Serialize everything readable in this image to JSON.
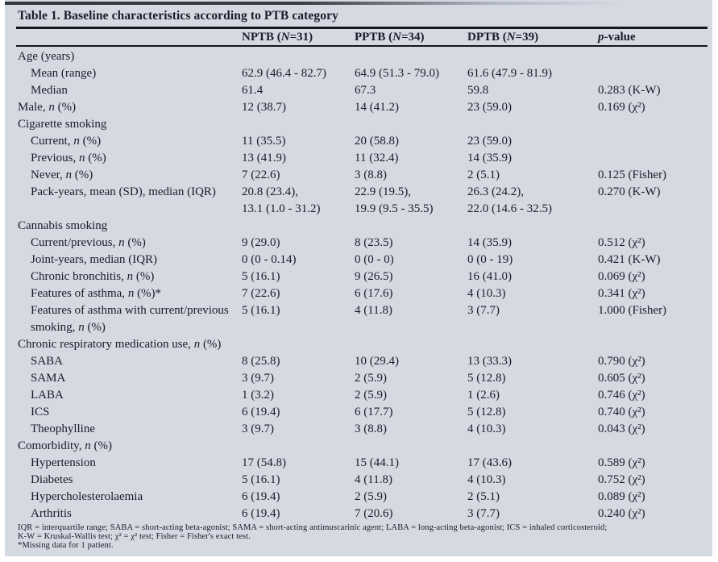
{
  "table": {
    "title": "Table 1. Baseline characteristics according to PTB category",
    "columns": {
      "label": "",
      "c1": "NPTB (~N~=31)",
      "c2": "PPTB (~N~=34)",
      "c3": "DPTB (~N~=39)",
      "p": "~p~-value"
    },
    "rows": [
      {
        "label": "Age (years)",
        "indent": 0,
        "c1": "",
        "c2": "",
        "c3": "",
        "p": ""
      },
      {
        "label": "Mean (range)",
        "indent": 1,
        "c1": "62.9 (46.4 - 82.7)",
        "c2": "64.9 (51.3 - 79.0)",
        "c3": "61.6 (47.9 - 81.9)",
        "p": ""
      },
      {
        "label": "Median",
        "indent": 1,
        "c1": "61.4",
        "c2": "67.3",
        "c3": "59.8",
        "p": "0.283 (K-W)"
      },
      {
        "label": "Male, ~n~ (%)",
        "indent": 0,
        "c1": "12 (38.7)",
        "c2": "14 (41.2)",
        "c3": "23 (59.0)",
        "p": "0.169 (χ²)"
      },
      {
        "label": "Cigarette smoking",
        "indent": 0,
        "c1": "",
        "c2": "",
        "c3": "",
        "p": ""
      },
      {
        "label": "Current, ~n~ (%)",
        "indent": 1,
        "c1": "11 (35.5)",
        "c2": "20 (58.8)",
        "c3": "23 (59.0)",
        "p": ""
      },
      {
        "label": "Previous, ~n~ (%)",
        "indent": 1,
        "c1": "13 (41.9)",
        "c2": "11 (32.4)",
        "c3": "14 (35.9)",
        "p": ""
      },
      {
        "label": "Never, ~n~ (%)",
        "indent": 1,
        "c1": "7 (22.6)",
        "c2": "3 (8.8)",
        "c3": "2 (5.1)",
        "p": "0.125 (Fisher)"
      },
      {
        "label": "Pack-years, mean (SD), median (IQR)",
        "indent": 1,
        "c1": "20.8 (23.4),\n13.1 (1.0 - 31.2)",
        "c2": "22.9 (19.5),\n19.9 (9.5 - 35.5)",
        "c3": "26.3 (24.2),\n22.0 (14.6 - 32.5)",
        "p": "0.270 (K-W)"
      },
      {
        "label": "Cannabis smoking",
        "indent": 0,
        "c1": "",
        "c2": "",
        "c3": "",
        "p": ""
      },
      {
        "label": "Current/previous, ~n~ (%)",
        "indent": 1,
        "c1": "9 (29.0)",
        "c2": "8 (23.5)",
        "c3": "14 (35.9)",
        "p": "0.512 (χ²)"
      },
      {
        "label": "Joint-years, median (IQR)",
        "indent": 1,
        "c1": "0 (0 - 0.14)",
        "c2": "0 (0 - 0)",
        "c3": "0 (0 - 19)",
        "p": "0.421 (K-W)"
      },
      {
        "label": "Chronic bronchitis, ~n~ (%)",
        "indent": 1,
        "c1": "5 (16.1)",
        "c2": "9 (26.5)",
        "c3": "16 (41.0)",
        "p": "0.069 (χ²)"
      },
      {
        "label": "Features of asthma, ~n~ (%)*",
        "indent": 1,
        "c1": "7 (22.6)",
        "c2": "6 (17.6)",
        "c3": "4 (10.3)",
        "p": "0.341 (χ²)"
      },
      {
        "label": "Features of asthma with current/previous\nsmoking, ~n~ (%)",
        "indent": 1,
        "c1": "5 (16.1)",
        "c2": "4 (11.8)",
        "c3": "3 (7.7)",
        "p": "1.000 (Fisher)"
      },
      {
        "label": "Chronic respiratory medication use, ~n~ (%)",
        "indent": 0,
        "c1": "",
        "c2": "",
        "c3": "",
        "p": ""
      },
      {
        "label": "SABA",
        "indent": 1,
        "c1": "8 (25.8)",
        "c2": "10 (29.4)",
        "c3": "13 (33.3)",
        "p": "0.790 (χ²)"
      },
      {
        "label": "SAMA",
        "indent": 1,
        "c1": "3 (9.7)",
        "c2": "2 (5.9)",
        "c3": "5 (12.8)",
        "p": "0.605 (χ²)"
      },
      {
        "label": "LABA",
        "indent": 1,
        "c1": "1 (3.2)",
        "c2": "2 (5.9)",
        "c3": "1 (2.6)",
        "p": "0.746 (χ²)"
      },
      {
        "label": "ICS",
        "indent": 1,
        "c1": "6 (19.4)",
        "c2": "6 (17.7)",
        "c3": "5 (12.8)",
        "p": "0.740 (χ²)"
      },
      {
        "label": "Theophylline",
        "indent": 1,
        "c1": "3 (9.7)",
        "c2": "3 (8.8)",
        "c3": "4 (10.3)",
        "p": "0.043 (χ²)"
      },
      {
        "label": "Comorbidity, ~n~ (%)",
        "indent": 0,
        "c1": "",
        "c2": "",
        "c3": "",
        "p": ""
      },
      {
        "label": "Hypertension",
        "indent": 1,
        "c1": "17 (54.8)",
        "c2": "15 (44.1)",
        "c3": "17 (43.6)",
        "p": "0.589 (χ²)"
      },
      {
        "label": "Diabetes",
        "indent": 1,
        "c1": "5 (16.1)",
        "c2": "4 (11.8)",
        "c3": "4 (10.3)",
        "p": "0.752 (χ²)"
      },
      {
        "label": "Hypercholesterolaemia",
        "indent": 1,
        "c1": "6 (19.4)",
        "c2": "2 (5.9)",
        "c3": "2 (5.1)",
        "p": "0.089 (χ²)"
      },
      {
        "label": "Arthritis",
        "indent": 1,
        "c1": "6 (19.4)",
        "c2": "7 (20.6)",
        "c3": "3 (7.7)",
        "p": "0.240 (χ²)"
      }
    ],
    "footnotes": [
      "IQR = interquartile range; SABA = short-acting beta-agonist; SAMA = short-acting antimuscarinic agent; LABA = long-acting beta-agonist; ICS = inhaled corticosteroid;",
      "K-W = Kruskal-Wallis test; χ² = χ² test; Fisher = Fisher's exact test.",
      "*Missing data for 1 patient."
    ],
    "colors": {
      "panel_background": "#d4d9e2",
      "text": "#1a1d29",
      "rule": "#14171e",
      "top_bar": "#33363e"
    }
  }
}
